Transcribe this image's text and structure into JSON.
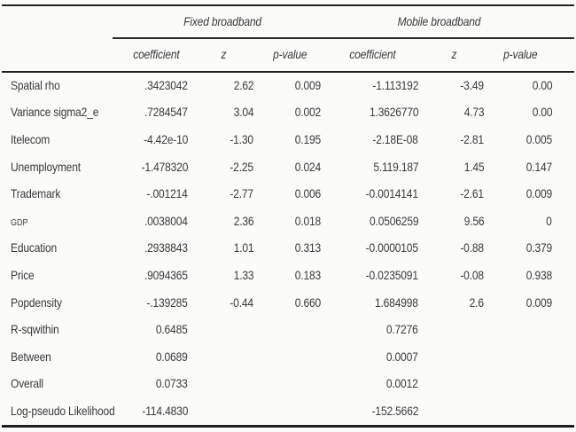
{
  "table": {
    "column_groups": [
      {
        "label": "Fixed broadband"
      },
      {
        "label": "Mobile broadband"
      }
    ],
    "subheaders": [
      "coefficient",
      "z",
      "p-value",
      "coefficient",
      "z",
      "p-value"
    ],
    "rows": [
      {
        "label": "Spatial rho",
        "cells": [
          ".3423042",
          "2.62",
          "0.009",
          "-1.113192",
          "-3.49",
          "0.00"
        ]
      },
      {
        "label": "Variance sigma2_e",
        "cells": [
          ".7284547",
          "3.04",
          "0.002",
          "1.3626770",
          "4.73",
          "0.00"
        ]
      },
      {
        "label": "Itelecom",
        "cells": [
          "-4.42e-10",
          "-1.30",
          "0.195",
          "-2.18E-08",
          "-2.81",
          "0.005"
        ]
      },
      {
        "label": "Unemployment",
        "cells": [
          "-1.478320",
          "-2.25",
          "0.024",
          "5.119.187",
          "1.45",
          "0.147"
        ]
      },
      {
        "label": "Trademark",
        "cells": [
          "-.001214",
          "-2.77",
          "0.006",
          "-0.0014141",
          "-2.61",
          "0.009"
        ]
      },
      {
        "label": "GDP",
        "cells": [
          ".0038004",
          "2.36",
          "0.018",
          "0.0506259",
          "9.56",
          "0"
        ]
      },
      {
        "label": "Education",
        "cells": [
          ".2938843",
          "1.01",
          "0.313",
          "-0.0000105",
          "-0.88",
          "0.379"
        ]
      },
      {
        "label": "Price",
        "cells": [
          ".9094365",
          "1.33",
          "0.183",
          "-0.0235091",
          "-0.08",
          "0.938"
        ]
      },
      {
        "label": "Popdensity",
        "cells": [
          "-.139285",
          "-0.44",
          "0.660",
          "1.684998",
          "2.6",
          "0.009"
        ]
      },
      {
        "label": "R-sqwithin",
        "cells": [
          "0.6485",
          "",
          "",
          "0.7276",
          "",
          ""
        ]
      },
      {
        "label": "Between",
        "cells": [
          "0.0689",
          "",
          "",
          "0.0007",
          "",
          ""
        ]
      },
      {
        "label": "Overall",
        "cells": [
          "0.0733",
          "",
          "",
          "0.0012",
          "",
          ""
        ]
      },
      {
        "label": "Log-pseudo Likelihood",
        "cells": [
          "-114.4830",
          "",
          "",
          "-152.5662",
          "",
          ""
        ]
      }
    ]
  },
  "colors": {
    "text": "#3a3a3a",
    "rule": "#222222",
    "background": "#fbfbfa"
  }
}
